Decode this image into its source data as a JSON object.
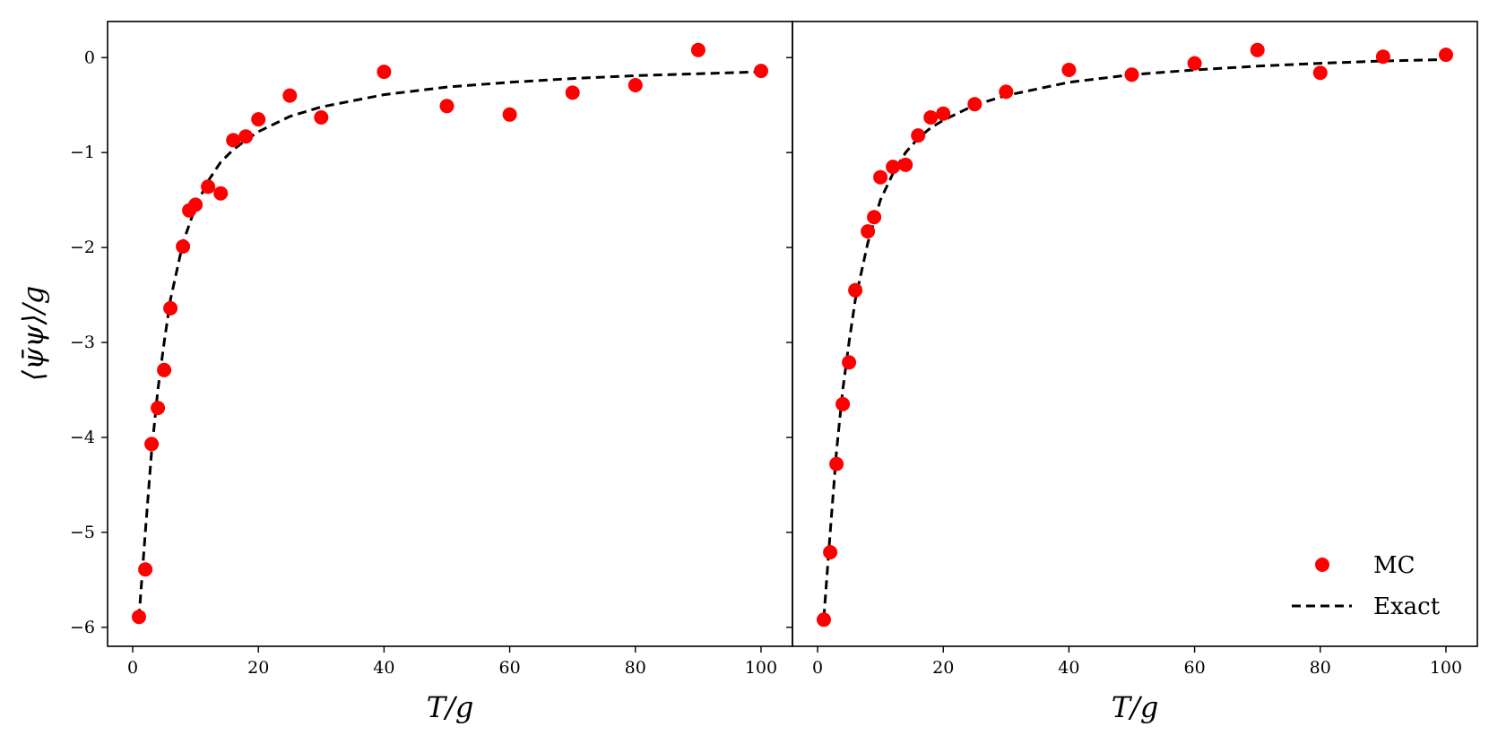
{
  "colors": {
    "mc_marker": "#ff0000",
    "exact_line": "#000000",
    "axes": "#000000",
    "background": "#ffffff"
  },
  "chart_data": [
    {
      "type": "scatter",
      "panel": "left",
      "xlabel": "T/g",
      "ylabel": "⟨ψ̄ψ⟩/g",
      "xlim": [
        -4,
        105
      ],
      "ylim": [
        -6.2,
        0.38
      ],
      "xticks": [
        0,
        20,
        40,
        60,
        80,
        100
      ],
      "xtick_labels": [
        "0",
        "20",
        "40",
        "60",
        "80",
        "100"
      ],
      "yticks": [
        0,
        -1,
        -2,
        -3,
        -4,
        -5,
        -6
      ],
      "ytick_labels": [
        "0",
        "−1",
        "−2",
        "−3",
        "−4",
        "−5",
        "−6"
      ],
      "grid": false,
      "series": [
        {
          "name": "MC",
          "kind": "scatter",
          "x": [
            1,
            2,
            3,
            4,
            5,
            6,
            8,
            9,
            10,
            12,
            14,
            16,
            18,
            20,
            25,
            30,
            40,
            50,
            60,
            70,
            80,
            90,
            100
          ],
          "y": [
            -5.89,
            -5.39,
            -4.07,
            -3.69,
            -3.29,
            -2.64,
            -1.99,
            -1.61,
            -1.55,
            -1.36,
            -1.43,
            -0.87,
            -0.83,
            -0.65,
            -0.4,
            -0.63,
            -0.15,
            -0.51,
            -0.6,
            -0.37,
            -0.29,
            0.08,
            -0.14
          ]
        },
        {
          "name": "Exact",
          "kind": "line",
          "style": "dashed",
          "x": [
            1,
            2,
            3,
            4,
            5,
            6,
            8,
            10,
            12,
            14,
            16,
            18,
            20,
            25,
            30,
            40,
            50,
            60,
            70,
            80,
            90,
            100
          ],
          "y": [
            -5.9,
            -5.0,
            -4.15,
            -3.5,
            -3.0,
            -2.55,
            -1.95,
            -1.57,
            -1.3,
            -1.1,
            -0.97,
            -0.87,
            -0.78,
            -0.62,
            -0.52,
            -0.39,
            -0.31,
            -0.26,
            -0.22,
            -0.19,
            -0.17,
            -0.15
          ]
        }
      ]
    },
    {
      "type": "scatter",
      "panel": "right",
      "xlabel": "T/g",
      "ylabel": "",
      "xlim": [
        -4,
        105
      ],
      "ylim": [
        -6.2,
        0.38
      ],
      "xticks": [
        0,
        20,
        40,
        60,
        80,
        100
      ],
      "xtick_labels": [
        "0",
        "20",
        "40",
        "60",
        "80",
        "100"
      ],
      "yticks": [
        0,
        -1,
        -2,
        -3,
        -4,
        -5,
        -6
      ],
      "ytick_labels": [],
      "grid": false,
      "legend": {
        "placement": "lower-right",
        "entries": [
          "MC",
          "Exact"
        ]
      },
      "series": [
        {
          "name": "MC",
          "kind": "scatter",
          "x": [
            1,
            2,
            3,
            4,
            5,
            6,
            8,
            9,
            10,
            12,
            14,
            16,
            18,
            20,
            25,
            30,
            40,
            50,
            60,
            70,
            80,
            90,
            100
          ],
          "y": [
            -5.92,
            -5.21,
            -4.28,
            -3.65,
            -3.21,
            -2.45,
            -1.83,
            -1.68,
            -1.26,
            -1.15,
            -1.13,
            -0.82,
            -0.63,
            -0.59,
            -0.49,
            -0.36,
            -0.13,
            -0.18,
            -0.06,
            0.08,
            -0.16,
            0.01,
            0.03
          ]
        },
        {
          "name": "Exact",
          "kind": "line",
          "style": "dashed",
          "x": [
            1,
            2,
            3,
            4,
            5,
            6,
            8,
            10,
            12,
            14,
            16,
            18,
            20,
            25,
            30,
            40,
            50,
            60,
            70,
            80,
            90,
            100
          ],
          "y": [
            -5.9,
            -5.0,
            -4.15,
            -3.5,
            -3.0,
            -2.55,
            -1.95,
            -1.5,
            -1.22,
            -1.0,
            -0.85,
            -0.74,
            -0.66,
            -0.5,
            -0.4,
            -0.26,
            -0.18,
            -0.13,
            -0.09,
            -0.06,
            -0.035,
            -0.02
          ]
        }
      ]
    }
  ]
}
